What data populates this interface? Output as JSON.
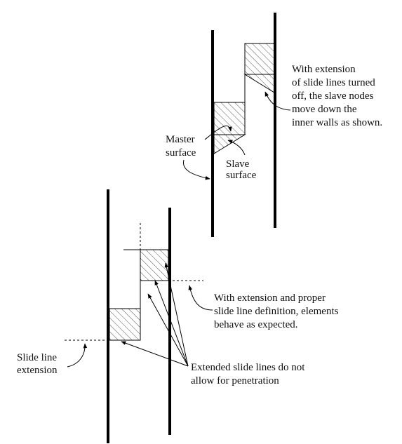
{
  "diagram": {
    "upper_note": [
      "With extension",
      "of slide lines turned",
      "off, the slave nodes",
      "move down the",
      "inner walls as shown."
    ],
    "master_label": [
      "Master",
      "surface"
    ],
    "slave_label": [
      "Slave",
      "surface"
    ],
    "lower_note": [
      "With extension and proper",
      "slide line definition, elements",
      "behave as expected."
    ],
    "extension_label": [
      "Slide line",
      "extension"
    ],
    "extended_note": [
      "Extended slide lines do not",
      "allow for penetration"
    ]
  },
  "colors": {
    "line": "#000000",
    "hatch": "#555555",
    "text": "#111111"
  }
}
